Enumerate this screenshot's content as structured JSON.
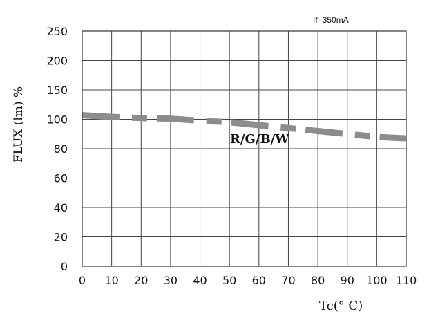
{
  "chart_data": {
    "type": "line",
    "annotation": "If=350mA",
    "ylabel": "FLUX (lm) %",
    "xlabel": "Tc(° C)",
    "xlim": [
      0,
      110
    ],
    "ylim": [
      0,
      250
    ],
    "x_ticks": [
      "0",
      "10",
      "20",
      "30",
      "40",
      "50",
      "60",
      "70",
      "80",
      "90",
      "100",
      "110"
    ],
    "y_ticks": [
      "0",
      "20",
      "40",
      "60",
      "80",
      "100",
      "150",
      "200",
      "250"
    ],
    "grid": true,
    "series": [
      {
        "name": "R/G/B/W",
        "color": "#8c8c8c",
        "style": "dashed",
        "x": [
          0,
          10,
          20,
          30,
          40,
          50,
          60,
          70,
          80,
          90,
          100,
          110
        ],
        "y": [
          107,
          104,
          102,
          101,
          99,
          98,
          96,
          94,
          92,
          90,
          88,
          87
        ]
      }
    ]
  }
}
